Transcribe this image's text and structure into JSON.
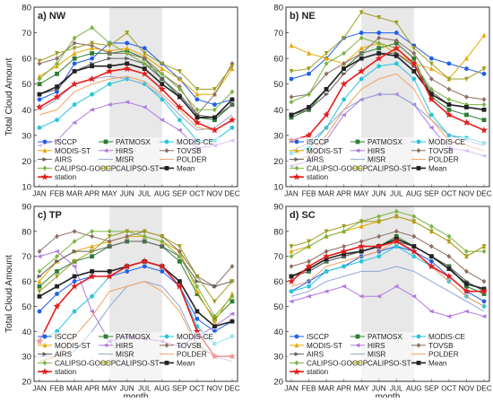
{
  "figure": {
    "shared": {
      "ylabel": "Total Cloud Amount",
      "xlabel": "month",
      "months": [
        "JAN",
        "FEB",
        "MAR",
        "APR",
        "MAY",
        "JUN",
        "JUL",
        "AUG",
        "SEP",
        "OCT",
        "NOV",
        "DEC"
      ],
      "shaded_months": [
        "MAY",
        "JUN",
        "JUL",
        "AUG"
      ],
      "legend_labels": [
        "ISCCP",
        "PATMOSX",
        "MODIS-CE",
        "MODIS-ST",
        "HIRS",
        "TOVSB",
        "AIRS",
        "MISR",
        "POLDER",
        "CALIPSO-GOCCP",
        "CALIPSO-ST",
        "Mean",
        "station"
      ],
      "colors": {
        "ISCCP": "#1f5ee8",
        "PATMOSX": "#2e7d32",
        "MODIS-CE": "#26c6da",
        "MODIS-ST": "#e6a700",
        "HIRS": "#b07be0",
        "TOVSB": "#8d6e63",
        "AIRS": "#616161",
        "MISR": "#90a4d4",
        "POLDER": "#f0a060",
        "CALIPSO-GOCCP": "#7cb342",
        "CALIPSO-ST": "#9e9d24",
        "Mean": "#222222",
        "station": "#e51c1c"
      }
    }
  },
  "chart_data": [
    {
      "type": "line",
      "title": "a) NW",
      "ylabel": "Total Cloud Amount",
      "xlabel": "",
      "ylim": [
        10,
        80
      ],
      "yticks": [
        10,
        20,
        30,
        40,
        50,
        60,
        70,
        80
      ],
      "categories": [
        "JAN",
        "FEB",
        "MAR",
        "APR",
        "MAY",
        "JUN",
        "JUL",
        "AUG",
        "SEP",
        "OCT",
        "NOV",
        "DEC"
      ],
      "legend": "bottom",
      "series": [
        {
          "name": "ISCCP",
          "values": [
            44,
            47,
            58,
            60,
            66,
            66,
            64,
            58,
            52,
            44,
            42,
            44
          ]
        },
        {
          "name": "PATMOSX",
          "values": [
            50,
            54,
            60,
            62,
            62,
            63,
            60,
            52,
            45,
            37,
            36,
            42
          ]
        },
        {
          "name": "MODIS-CE",
          "values": [
            33,
            36,
            42,
            46,
            50,
            52,
            50,
            44,
            36,
            28,
            28,
            33
          ]
        },
        {
          "name": "MODIS-ST",
          "values": [
            53,
            57,
            62,
            64,
            63,
            64,
            61,
            56,
            52,
            46,
            46,
            56
          ]
        },
        {
          "name": "HIRS",
          "values": [
            26,
            28,
            35,
            40,
            42,
            43,
            41,
            36,
            32,
            25,
            26,
            28
          ]
        },
        {
          "name": "TOVSB",
          "values": [
            58,
            60,
            66,
            65,
            62,
            62,
            60,
            54,
            49,
            38,
            46,
            58
          ]
        },
        {
          "name": "AIRS",
          "values": [
            46,
            48,
            55,
            58,
            60,
            60,
            58,
            52,
            46,
            38,
            37,
            42
          ]
        },
        {
          "name": "MISR",
          "values": [
            40,
            44,
            50,
            52,
            53,
            52,
            50,
            45,
            38,
            32,
            33,
            38
          ]
        },
        {
          "name": "POLDER",
          "values": [
            38,
            40,
            47,
            50,
            52,
            53,
            51,
            46,
            40,
            33,
            32,
            36
          ]
        },
        {
          "name": "CALIPSO-GOCCP",
          "values": [
            52,
            58,
            68,
            72,
            66,
            62,
            58,
            54,
            48,
            40,
            40,
            47
          ]
        },
        {
          "name": "CALIPSO-ST",
          "values": [
            59,
            62,
            64,
            66,
            65,
            70,
            62,
            58,
            55,
            48,
            48,
            57
          ]
        },
        {
          "name": "Mean",
          "values": [
            46,
            49,
            55,
            57,
            57,
            58,
            56,
            50,
            45,
            37,
            37,
            44
          ]
        },
        {
          "name": "station",
          "values": [
            41,
            45,
            50,
            52,
            55,
            56,
            54,
            48,
            41,
            35,
            32,
            36
          ]
        }
      ]
    },
    {
      "type": "line",
      "title": "b) NE",
      "ylabel": "",
      "xlabel": "",
      "ylim": [
        10,
        80
      ],
      "yticks": [
        10,
        20,
        30,
        40,
        50,
        60,
        70,
        80
      ],
      "categories": [
        "JAN",
        "FEB",
        "MAR",
        "APR",
        "MAY",
        "JUN",
        "JUL",
        "AUG",
        "SEP",
        "OCT",
        "NOV",
        "DEC"
      ],
      "legend": "bottom",
      "series": [
        {
          "name": "ISCCP",
          "values": [
            52,
            54,
            60,
            68,
            70,
            70,
            70,
            65,
            60,
            58,
            56,
            54
          ]
        },
        {
          "name": "PATMOSX",
          "values": [
            37,
            40,
            48,
            56,
            62,
            64,
            66,
            60,
            45,
            40,
            38,
            36
          ]
        },
        {
          "name": "MODIS-CE",
          "values": [
            23,
            25,
            33,
            44,
            52,
            57,
            58,
            52,
            38,
            30,
            29,
            27
          ]
        },
        {
          "name": "MODIS-ST",
          "values": [
            65,
            62,
            60,
            58,
            64,
            66,
            62,
            58,
            56,
            52,
            60,
            69
          ]
        },
        {
          "name": "HIRS",
          "values": [
            18,
            20,
            28,
            38,
            44,
            46,
            46,
            42,
            33,
            25,
            24,
            22
          ]
        },
        {
          "name": "TOVSB",
          "values": [
            45,
            46,
            54,
            58,
            62,
            68,
            67,
            62,
            52,
            48,
            45,
            44
          ]
        },
        {
          "name": "AIRS",
          "values": [
            38,
            40,
            46,
            54,
            60,
            62,
            62,
            57,
            47,
            42,
            41,
            40
          ]
        },
        {
          "name": "MISR",
          "values": [
            24,
            27,
            33,
            40,
            44,
            46,
            46,
            42,
            36,
            30,
            28,
            26
          ]
        },
        {
          "name": "POLDER",
          "values": [
            20,
            22,
            30,
            40,
            48,
            52,
            54,
            48,
            36,
            28,
            26,
            24
          ]
        },
        {
          "name": "CALIPSO-GOCCP",
          "values": [
            43,
            46,
            58,
            62,
            68,
            66,
            64,
            58,
            48,
            44,
            42,
            42
          ]
        },
        {
          "name": "CALIPSO-ST",
          "values": [
            55,
            56,
            62,
            68,
            78,
            76,
            74,
            64,
            58,
            52,
            52,
            56
          ]
        },
        {
          "name": "Mean",
          "values": [
            38,
            41,
            48,
            56,
            60,
            62,
            61,
            55,
            46,
            42,
            41,
            40
          ]
        },
        {
          "name": "station",
          "values": [
            28,
            30,
            38,
            50,
            55,
            60,
            64,
            58,
            44,
            38,
            35,
            32
          ]
        }
      ]
    },
    {
      "type": "line",
      "title": "c) TP",
      "ylabel": "Total Cloud Amount",
      "xlabel": "month",
      "ylim": [
        20,
        90
      ],
      "yticks": [
        20,
        30,
        40,
        50,
        60,
        70,
        80,
        90
      ],
      "categories": [
        "JAN",
        "FEB",
        "MAR",
        "APR",
        "MAY",
        "JUN",
        "JUL",
        "AUG",
        "SEP",
        "OCT",
        "NOV",
        "DEC"
      ],
      "legend": "bottom",
      "series": [
        {
          "name": "ISCCP",
          "values": [
            48,
            55,
            60,
            62,
            62,
            64,
            66,
            64,
            58,
            45,
            40,
            44
          ]
        },
        {
          "name": "PATMOSX",
          "values": [
            58,
            64,
            68,
            70,
            74,
            76,
            76,
            74,
            68,
            55,
            45,
            52
          ]
        },
        {
          "name": "MODIS-CE",
          "values": [
            36,
            40,
            48,
            54,
            62,
            66,
            68,
            66,
            58,
            42,
            35,
            38
          ]
        },
        {
          "name": "MODIS-ST",
          "values": [
            60,
            68,
            72,
            74,
            76,
            78,
            78,
            76,
            72,
            56,
            44,
            55
          ]
        },
        {
          "name": "HIRS",
          "values": [
            70,
            72,
            66,
            48,
            36,
            38,
            37,
            36,
            34,
            38,
            42,
            47
          ]
        },
        {
          "name": "TOVSB",
          "values": [
            72,
            78,
            80,
            78,
            76,
            78,
            80,
            78,
            72,
            62,
            58,
            66
          ]
        },
        {
          "name": "AIRS",
          "values": [
            62,
            68,
            72,
            72,
            74,
            76,
            76,
            74,
            70,
            60,
            58,
            60
          ]
        },
        {
          "name": "MISR",
          "values": [
            30,
            30,
            32,
            40,
            50,
            58,
            60,
            58,
            50,
            35,
            30,
            28
          ]
        },
        {
          "name": "POLDER",
          "values": [
            28,
            30,
            38,
            46,
            56,
            58,
            60,
            56,
            48,
            34,
            30,
            30
          ]
        },
        {
          "name": "CALIPSO-GOCCP",
          "values": [
            64,
            70,
            76,
            80,
            80,
            80,
            78,
            76,
            70,
            58,
            46,
            54
          ]
        },
        {
          "name": "CALIPSO-ST",
          "values": [
            56,
            62,
            68,
            72,
            78,
            80,
            80,
            78,
            74,
            62,
            52,
            60
          ]
        },
        {
          "name": "Mean",
          "values": [
            54,
            58,
            62,
            64,
            64,
            66,
            68,
            66,
            60,
            48,
            42,
            44
          ]
        },
        {
          "name": "station",
          "values": [
            36,
            50,
            58,
            62,
            62,
            66,
            68,
            66,
            58,
            40,
            30,
            30
          ]
        }
      ]
    },
    {
      "type": "line",
      "title": "d) SC",
      "ylabel": "",
      "xlabel": "month",
      "ylim": [
        20,
        90
      ],
      "yticks": [
        20,
        30,
        40,
        50,
        60,
        70,
        80,
        90
      ],
      "categories": [
        "JAN",
        "FEB",
        "MAR",
        "APR",
        "MAY",
        "JUN",
        "JUL",
        "AUG",
        "SEP",
        "OCT",
        "NOV",
        "DEC"
      ],
      "legend": "bottom",
      "series": [
        {
          "name": "ISCCP",
          "values": [
            56,
            60,
            64,
            66,
            70,
            72,
            74,
            72,
            68,
            62,
            56,
            52
          ]
        },
        {
          "name": "PATMOSX",
          "values": [
            62,
            64,
            68,
            70,
            72,
            74,
            78,
            74,
            70,
            66,
            58,
            55
          ]
        },
        {
          "name": "MODIS-CE",
          "values": [
            56,
            58,
            64,
            66,
            68,
            70,
            74,
            70,
            66,
            60,
            54,
            50
          ]
        },
        {
          "name": "MODIS-ST",
          "values": [
            72,
            74,
            78,
            80,
            82,
            84,
            86,
            84,
            80,
            76,
            70,
            74
          ]
        },
        {
          "name": "HIRS",
          "values": [
            52,
            54,
            56,
            58,
            54,
            54,
            58,
            54,
            48,
            46,
            48,
            46
          ]
        },
        {
          "name": "TOVSB",
          "values": [
            66,
            68,
            72,
            74,
            76,
            78,
            80,
            78,
            74,
            70,
            64,
            60
          ]
        },
        {
          "name": "AIRS",
          "values": [
            62,
            64,
            68,
            70,
            72,
            74,
            76,
            74,
            70,
            66,
            60,
            56
          ]
        },
        {
          "name": "MISR",
          "values": [
            54,
            56,
            60,
            62,
            64,
            64,
            66,
            64,
            60,
            56,
            52,
            48
          ]
        },
        {
          "name": "POLDER",
          "values": [
            58,
            60,
            66,
            68,
            70,
            72,
            76,
            72,
            66,
            60,
            54,
            50
          ]
        },
        {
          "name": "CALIPSO-GOCCP",
          "values": [
            70,
            74,
            78,
            80,
            84,
            86,
            88,
            86,
            82,
            78,
            72,
            72
          ]
        },
        {
          "name": "CALIPSO-ST",
          "values": [
            74,
            76,
            80,
            82,
            84,
            84,
            86,
            84,
            80,
            76,
            70,
            74
          ]
        },
        {
          "name": "Mean",
          "values": [
            62,
            65,
            69,
            71,
            72,
            74,
            77,
            74,
            70,
            65,
            59,
            57
          ]
        },
        {
          "name": "station",
          "values": [
            60,
            66,
            70,
            72,
            74,
            74,
            76,
            72,
            66,
            62,
            56,
            56
          ]
        }
      ]
    }
  ]
}
